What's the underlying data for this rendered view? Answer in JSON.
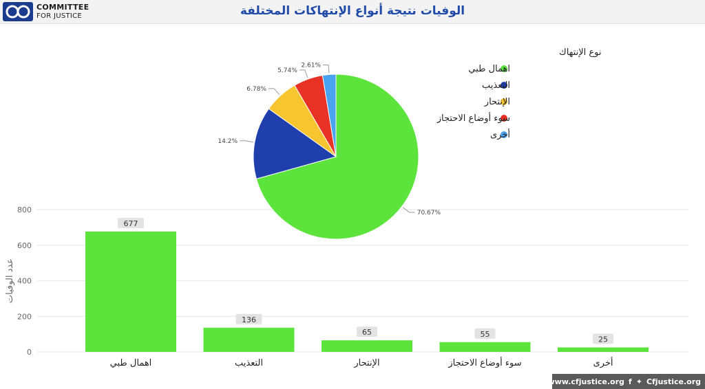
{
  "header": {
    "logo_line1": "COMMITTEE",
    "logo_line2": "FOR JUSTICE",
    "title": "الوفيات نتيجة أنواع الإنتهاكات المختلفة"
  },
  "footer": {
    "website": "www.cfjustice.org",
    "social": "f",
    "handle": "Cfjustice.org"
  },
  "chart_data": [
    {
      "type": "pie",
      "legend_title": "نوع الإنتهاك",
      "legend_position": "top-right",
      "slices": [
        {
          "label": "اهمال طبي",
          "value": 70.67,
          "display": "70.67%",
          "color": "#5ce33c"
        },
        {
          "label": "التعذيب",
          "value": 14.2,
          "display": "14.2%",
          "color": "#1f3fad"
        },
        {
          "label": "الإنتحار",
          "value": 6.78,
          "display": "6.78%",
          "color": "#f7c530"
        },
        {
          "label": "سوء أوضاع الاحتجاز",
          "value": 5.74,
          "display": "5.74%",
          "color": "#e83226"
        },
        {
          "label": "أخرى",
          "value": 2.61,
          "display": "2.61%",
          "color": "#4aa3ee"
        }
      ]
    },
    {
      "type": "bar",
      "categories": [
        "اهمال طبي",
        "التعذيب",
        "الإنتحار",
        "سوء أوضاع الاحتجاز",
        "أخرى"
      ],
      "values": [
        677,
        136,
        65,
        55,
        25
      ],
      "ylabel": "عدد الوفيات",
      "yticks": [
        0,
        200,
        400,
        600,
        800
      ],
      "ylim": [
        0,
        800
      ],
      "color": "#5ce33c",
      "grid": true
    }
  ]
}
